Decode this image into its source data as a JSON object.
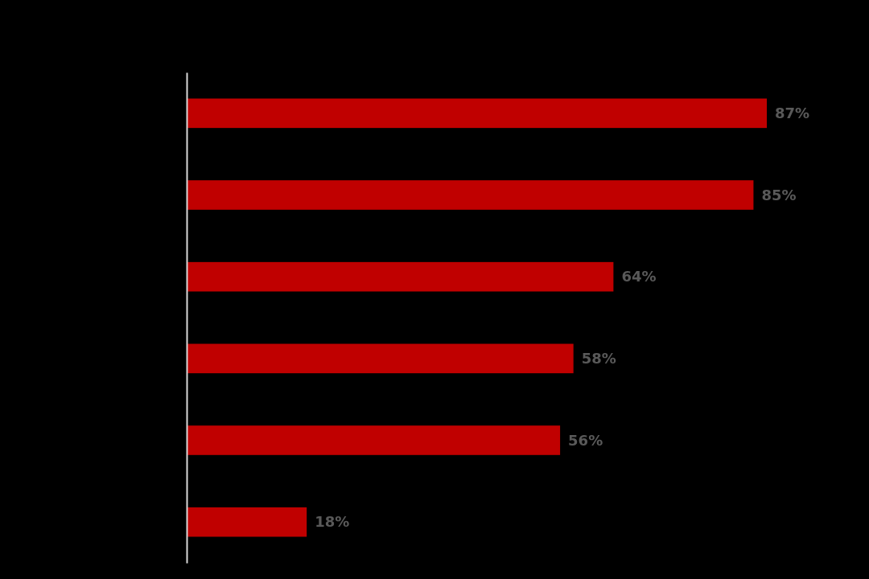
{
  "chart_data": {
    "type": "bar",
    "orientation": "horizontal",
    "categories": [
      null,
      null,
      null,
      null,
      null,
      null
    ],
    "values": [
      87,
      85,
      64,
      58,
      56,
      18
    ],
    "value_labels": [
      "87%",
      "85%",
      "64%",
      "58%",
      "56%",
      "18%"
    ],
    "color": "#c00000"
  }
}
